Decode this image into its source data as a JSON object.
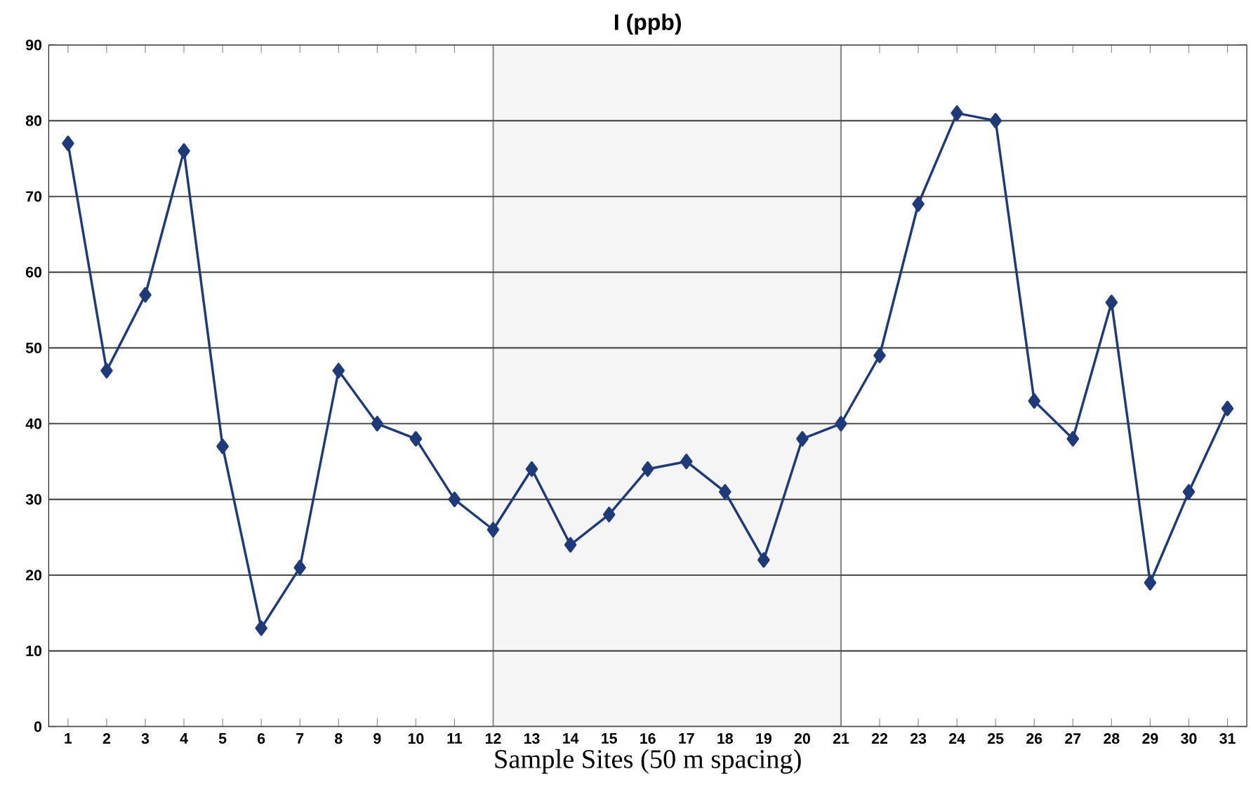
{
  "chart_data": {
    "type": "line",
    "title": "I (ppb)",
    "xlabel": "Sample Sites (50 m spacing)",
    "x": [
      1,
      2,
      3,
      4,
      5,
      6,
      7,
      8,
      9,
      10,
      11,
      12,
      13,
      14,
      15,
      16,
      17,
      18,
      19,
      20,
      21,
      22,
      23,
      24,
      25,
      26,
      27,
      28,
      29,
      30,
      31
    ],
    "series": [
      {
        "color": "#1f3a78",
        "values": [
          77,
          47,
          57,
          76,
          37,
          13,
          21,
          47,
          40,
          38,
          30,
          26,
          34,
          24,
          28,
          34,
          35,
          31,
          22,
          38,
          40,
          49,
          69,
          81,
          80,
          43,
          38,
          56,
          19,
          31,
          42
        ]
      }
    ],
    "xlim": [
      0.5,
      31.5
    ],
    "xticks": [
      1,
      2,
      3,
      4,
      5,
      6,
      7,
      8,
      9,
      10,
      11,
      12,
      13,
      14,
      15,
      16,
      17,
      18,
      19,
      20,
      21,
      22,
      23,
      24,
      25,
      26,
      27,
      28,
      29,
      30,
      31
    ],
    "ylim": [
      0,
      90
    ],
    "yticks": [
      0,
      10,
      20,
      30,
      40,
      50,
      60,
      70,
      80,
      90
    ],
    "bands": [
      {
        "axis": "x",
        "from": 12,
        "to": 21,
        "color": "#888888"
      }
    ],
    "grid": "y",
    "marker": "diamond",
    "line_style": "solid"
  }
}
